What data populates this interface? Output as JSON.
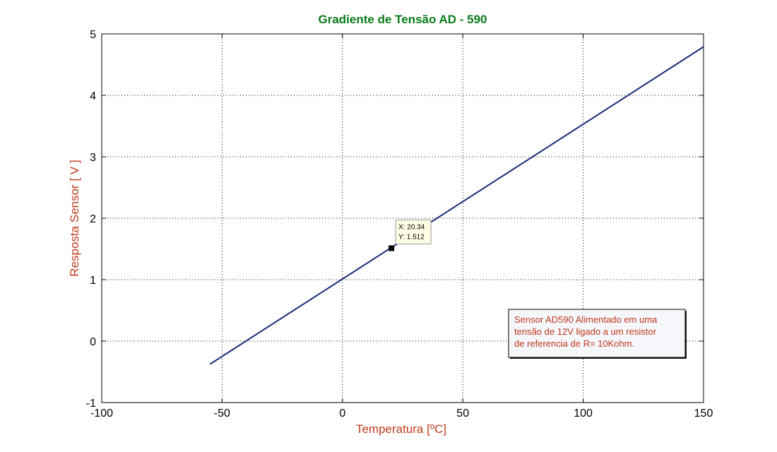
{
  "chart_data": {
    "type": "line",
    "title": "Gradiente de Tensão AD - 590",
    "xlabel": "Temperatura [ºC]",
    "ylabel": "Resposta Sensor [ V ]",
    "xlim": [
      -100,
      150
    ],
    "ylim": [
      -1,
      5
    ],
    "xticks": [
      -100,
      -50,
      0,
      50,
      100,
      150
    ],
    "yticks": [
      -1,
      0,
      1,
      2,
      3,
      4,
      5
    ],
    "grid": true,
    "series": [
      {
        "x": [
          -55,
          150
        ],
        "y": [
          -0.375,
          4.79
        ],
        "color": "#1a2a7a"
      }
    ],
    "datatip": {
      "x": 20.34,
      "y": 1.512,
      "x_text": "X: 20.34",
      "y_text": "Y: 1.512"
    },
    "annotation": {
      "lines": [
        "Sensor AD590 Alimentado em uma",
        "tensão de 12V ligado a um resistor",
        "de referencia de R= 10Kohm."
      ]
    }
  }
}
